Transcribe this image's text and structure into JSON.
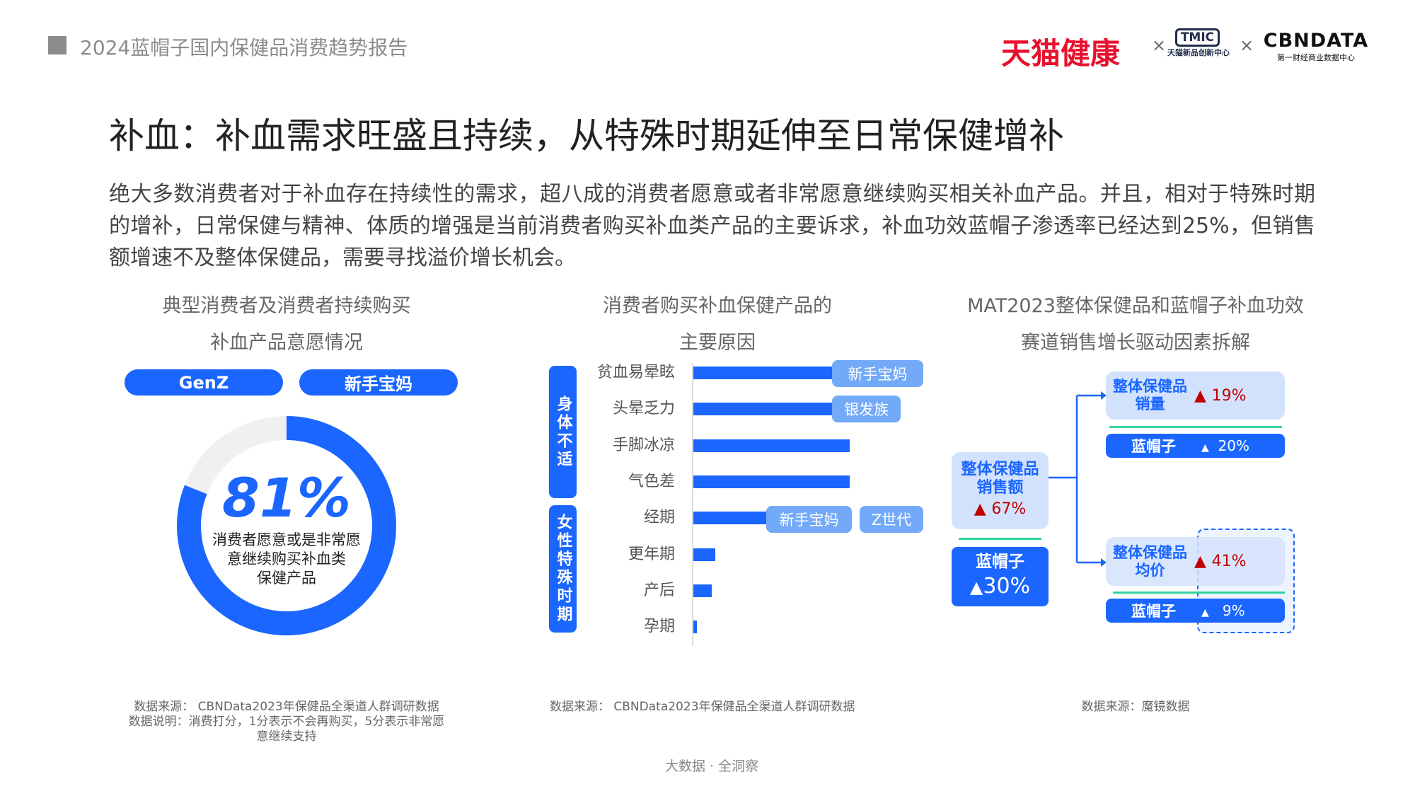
{
  "header": {
    "report_title": "2024蓝帽子国内保健品消费趋势报告",
    "logos": {
      "tmall_health": "天猫健康",
      "tmic": "TMIC",
      "tmic_sub": "天猫新品创新中心",
      "cbndata": "CBNDATA",
      "cbndata_sub": "第一财经商业数据中心",
      "separator": "×"
    }
  },
  "page_title": "补血：补血需求旺盛且持续，从特殊时期延伸至日常保健增补",
  "intro": "绝大多数消费者对于补血存在持续性的需求，超八成的消费者愿意或者非常愿意继续购买相关补血产品。并且，相对于特殊时期的增补，日常保健与精神、体质的增强是当前消费者购买补血类产品的主要诉求，补血功效蓝帽子渗透率已经达到25%，但销售额增速不及整体保健品，需要寻找溢价增长机会。",
  "col1": {
    "title_l1": "典型消费者及消费者持续购买",
    "title_l2": "补血产品意愿情况",
    "pills": [
      "GenZ",
      "新手宝妈"
    ],
    "donut_value": "81%",
    "donut_fraction": 0.81,
    "donut_text": [
      "消费者愿意或是非常愿",
      "意继续购买补血类",
      "保健产品"
    ],
    "source": [
      "数据来源： CBNData2023年保健品全渠道人群调研数据",
      "数据说明：消费打分，1分表示不会再购买，5分表示非常愿",
      "意继续支持"
    ],
    "colors": {
      "fill": "#1a66ff",
      "track": "#f0f0f0"
    }
  },
  "chart_data": {
    "type": "bar",
    "orientation": "horizontal",
    "title": "消费者购买补血保健产品的主要原因",
    "title_l1": "消费者购买补血保健产品的",
    "title_l2": "主要原因",
    "categories": [
      "贫血易晕眩",
      "头晕乏力",
      "手脚冰凉",
      "气色差",
      "经期",
      "更年期",
      "产后",
      "孕期"
    ],
    "values": [
      47,
      44,
      43,
      43,
      24,
      6,
      5,
      1
    ],
    "groups": [
      {
        "label": "身体不适",
        "members": [
          0,
          1,
          2,
          3
        ]
      },
      {
        "label": "女性特殊时期",
        "members": [
          4,
          5,
          6,
          7
        ]
      }
    ],
    "tags": [
      {
        "row": 0,
        "labels": [
          "新手宝妈"
        ]
      },
      {
        "row": 1,
        "labels": [
          "银发族"
        ]
      },
      {
        "row": 4,
        "labels": [
          "新手宝妈",
          "Z世代"
        ]
      }
    ],
    "color": "#1a66ff",
    "axis_labels_shown": false
  },
  "col2": {
    "source": "数据来源： CBNData2023年保健品全渠道人群调研数据"
  },
  "col3": {
    "title_l1": "MAT2023整体保健品和蓝帽子补血功效",
    "title_l2": "赛道销售增长驱动因素拆解",
    "sales": {
      "label_l1": "整体保健品",
      "label_l2": "销售额",
      "value": "67%",
      "blue_label": "蓝帽子",
      "blue_value": "30%"
    },
    "volume": {
      "label_l1": "整体保健品",
      "label_l2": "销量",
      "value": "19%",
      "blue_label": "蓝帽子",
      "blue_value": "20%"
    },
    "price": {
      "label_l1": "整体保健品",
      "label_l2": "均价",
      "value": "41%",
      "blue_label": "蓝帽子",
      "blue_value": "9%"
    },
    "up_arrow": "▲",
    "source": "数据来源：魔镜数据"
  },
  "footer": "大数据 · 全洞察"
}
